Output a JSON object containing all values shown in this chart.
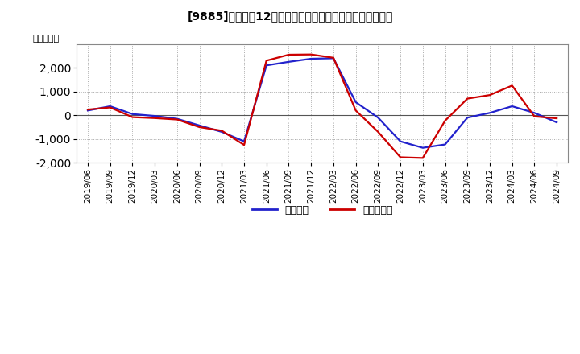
{
  "title": "[9885]　利益だ12か月移動合計の対前年同期増減額の推移",
  "ylabel": "（百万円）",
  "background_color": "#ffffff",
  "plot_bg_color": "#ffffff",
  "grid_color": "#aaaaaa",
  "ylim": [
    -2000,
    3000
  ],
  "yticks": [
    -2000,
    -1000,
    0,
    1000,
    2000
  ],
  "x_labels": [
    "2019/06",
    "2019/09",
    "2019/12",
    "2020/03",
    "2020/06",
    "2020/09",
    "2020/12",
    "2021/03",
    "2021/06",
    "2021/09",
    "2021/12",
    "2022/03",
    "2022/06",
    "2022/09",
    "2022/12",
    "2023/03",
    "2023/06",
    "2023/09",
    "2023/12",
    "2024/03",
    "2024/06",
    "2024/09"
  ],
  "blue_vals": [
    200,
    380,
    50,
    -30,
    -150,
    -430,
    -700,
    -1100,
    2100,
    2250,
    2380,
    2400,
    550,
    -100,
    -1100,
    -1370,
    -1230,
    -100,
    100,
    380,
    100,
    -300
  ],
  "red_vals": [
    240,
    330,
    -80,
    -120,
    -180,
    -500,
    -650,
    -1250,
    2300,
    2550,
    2560,
    2420,
    200,
    -700,
    -1770,
    -1800,
    -230,
    700,
    850,
    1250,
    -50,
    -130
  ],
  "blue_color": "#2222cc",
  "red_color": "#cc0000",
  "linewidth": 1.6,
  "legend_blue": "経常利益",
  "legend_red": "当期純利益"
}
